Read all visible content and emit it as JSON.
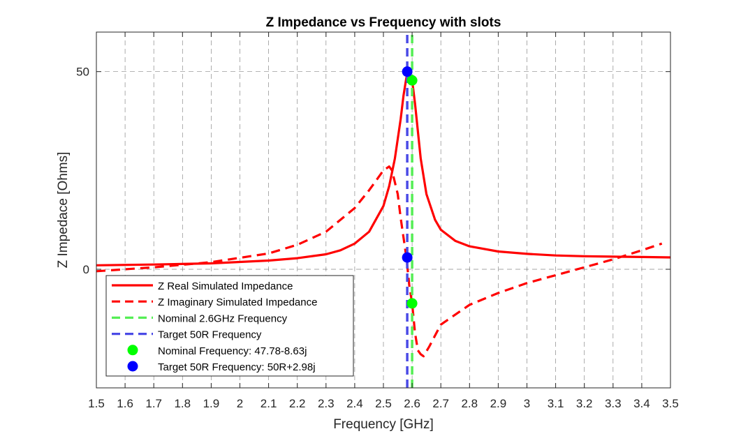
{
  "chart_data": {
    "type": "line",
    "title": "Z Impedance vs Frequency with slots",
    "xlabel": "Frequency [GHz]",
    "ylabel": "Z Impedace [Ohms]",
    "xlim": [
      1.5,
      3.5
    ],
    "ylim": [
      -30,
      60
    ],
    "x_ticks": [
      "1.5",
      "1.6",
      "1.7",
      "1.8",
      "1.9",
      "2",
      "2.1",
      "2.2",
      "2.3",
      "2.4",
      "2.5",
      "2.6",
      "2.7",
      "2.8",
      "2.9",
      "3",
      "3.1",
      "3.2",
      "3.3",
      "3.4",
      "3.5"
    ],
    "y_ticks": [
      "0",
      "50"
    ],
    "grid": true,
    "legend_position": "bottom-left",
    "series": [
      {
        "name": "Z Real Simulated Impedance",
        "style": "solid",
        "color": "#ff0000",
        "x": [
          1.5,
          1.7,
          1.9,
          2.1,
          2.2,
          2.3,
          2.35,
          2.4,
          2.45,
          2.5,
          2.52,
          2.54,
          2.56,
          2.57,
          2.58,
          2.59,
          2.6,
          2.61,
          2.62,
          2.63,
          2.65,
          2.68,
          2.7,
          2.75,
          2.8,
          2.9,
          3.0,
          3.1,
          3.2,
          3.3,
          3.4,
          3.5
        ],
        "y": [
          1.0,
          1.2,
          1.5,
          2.2,
          2.8,
          3.8,
          4.8,
          6.5,
          9.5,
          16.0,
          21.0,
          28.0,
          38.0,
          44.0,
          48.5,
          50.0,
          47.8,
          42.0,
          35.0,
          28.0,
          19.0,
          12.5,
          10.0,
          7.2,
          5.8,
          4.5,
          3.9,
          3.5,
          3.3,
          3.2,
          3.1,
          3.0
        ]
      },
      {
        "name": "Z Imaginary Simulated Impedance",
        "style": "dashed",
        "color": "#ff0000",
        "x": [
          1.5,
          1.7,
          1.9,
          2.1,
          2.2,
          2.3,
          2.4,
          2.45,
          2.5,
          2.52,
          2.53,
          2.55,
          2.56,
          2.57,
          2.58,
          2.59,
          2.6,
          2.61,
          2.62,
          2.63,
          2.64,
          2.66,
          2.7,
          2.8,
          2.9,
          3.0,
          3.1,
          3.2,
          3.3,
          3.4,
          3.47
        ],
        "y": [
          -0.5,
          0.5,
          1.8,
          4.0,
          6.2,
          9.5,
          15.5,
          20.0,
          25.0,
          26.0,
          25.0,
          19.0,
          13.0,
          8.0,
          2.98,
          -4.0,
          -8.63,
          -16.0,
          -20.5,
          -21.5,
          -22.0,
          -19.5,
          -14.0,
          -9.0,
          -6.0,
          -3.5,
          -1.5,
          0.5,
          2.5,
          4.8,
          6.5
        ]
      },
      {
        "name": "Nominal 2.6GHz Frequency",
        "style": "dashed-vertical",
        "color": "#55ee55",
        "x": [
          2.6,
          2.6
        ],
        "y": [
          -30,
          60
        ]
      },
      {
        "name": "Target 50R Frequency",
        "style": "dashed-vertical",
        "color": "#4a4ae6",
        "x": [
          2.583,
          2.583
        ],
        "y": [
          -30,
          60
        ]
      },
      {
        "name": "Nominal Frequency: 47.78-8.63j",
        "style": "marker",
        "color": "#00ff00",
        "x": [
          2.6,
          2.6
        ],
        "y": [
          47.78,
          -8.63
        ]
      },
      {
        "name": "Target 50R Frequency: 50R+2.98j",
        "style": "marker",
        "color": "#0000ff",
        "x": [
          2.583,
          2.583
        ],
        "y": [
          50,
          2.98
        ]
      }
    ]
  }
}
